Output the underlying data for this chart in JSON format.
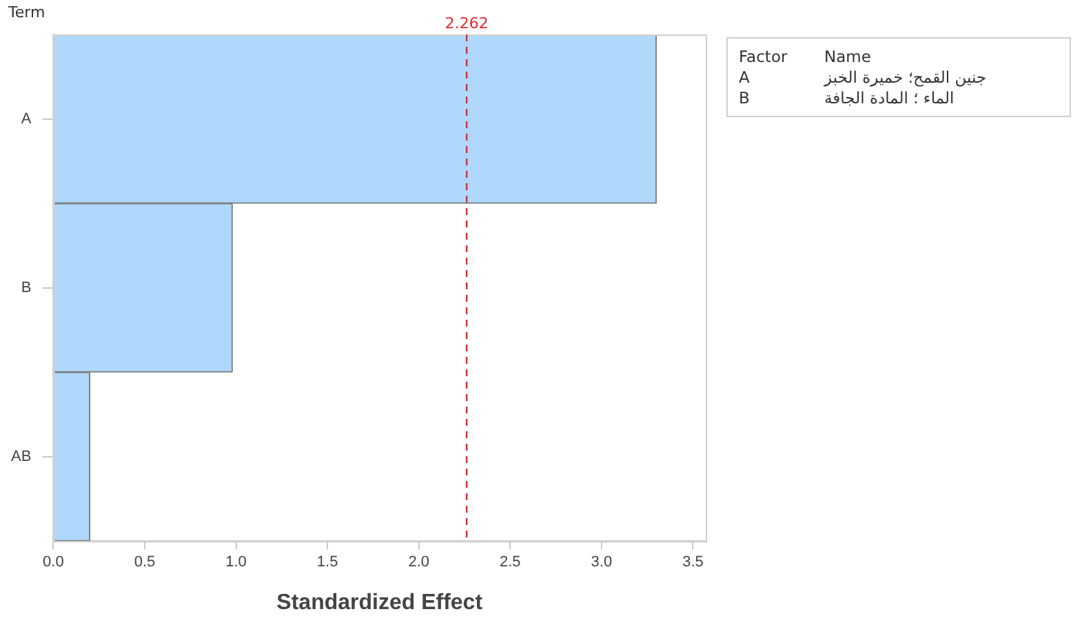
{
  "chart_data": {
    "type": "bar",
    "orientation": "horizontal",
    "xlabel": "Standardized Effect",
    "ylabel": "Term",
    "categories": [
      "A",
      "B",
      "AB"
    ],
    "values": [
      3.3,
      0.98,
      0.2
    ],
    "color": "#b0d8fc",
    "xlim": [
      0,
      3.57
    ],
    "xticks": [
      {
        "value": 0,
        "label": "0.0"
      },
      {
        "value": 0.5,
        "label": "0.5"
      },
      {
        "value": 1,
        "label": "1.0"
      },
      {
        "value": 1.5,
        "label": "1.5"
      },
      {
        "value": 2,
        "label": "2.0"
      },
      {
        "value": 2.5,
        "label": "2.5"
      },
      {
        "value": 3,
        "label": "3.0"
      },
      {
        "value": 3.5,
        "label": "3.5"
      }
    ],
    "ref_lines": [
      {
        "axis": "x",
        "value": 2.262,
        "label": "2.262",
        "color": "#e8262b",
        "line_style": "dashed"
      }
    ],
    "grid": false,
    "legend": false,
    "annotations": [
      "Factor",
      "Name",
      "A",
      "جنين القمح؛ خميرة الخبز",
      "B",
      "الماء ؛ المادة الجافة"
    ]
  }
}
